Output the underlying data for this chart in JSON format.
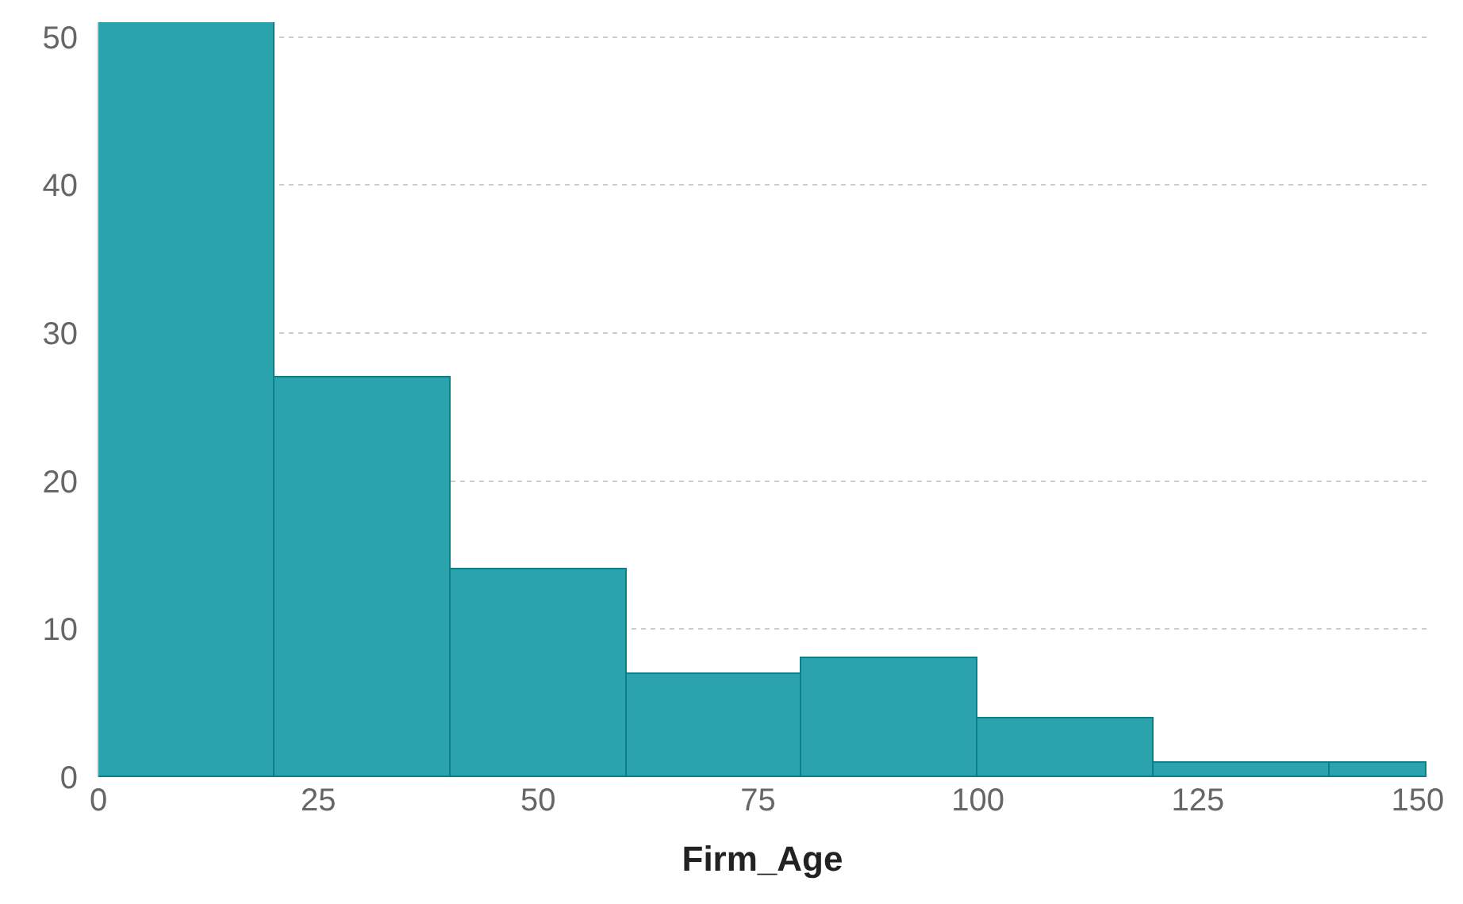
{
  "chart_data": {
    "type": "histogram",
    "xlabel": "Firm_Age",
    "bins": [
      0,
      20,
      40,
      60,
      80,
      100,
      120,
      140,
      151
    ],
    "values": [
      51,
      27,
      14,
      7,
      8,
      4,
      1,
      1
    ],
    "color": "#2aa3ad",
    "xlim": [
      0,
      151
    ],
    "xticks": [
      0,
      25,
      50,
      75,
      100,
      125,
      150
    ],
    "ylim": [
      0,
      51
    ],
    "yticks": [
      0,
      10,
      20,
      30,
      40,
      50
    ],
    "grid": "y"
  }
}
